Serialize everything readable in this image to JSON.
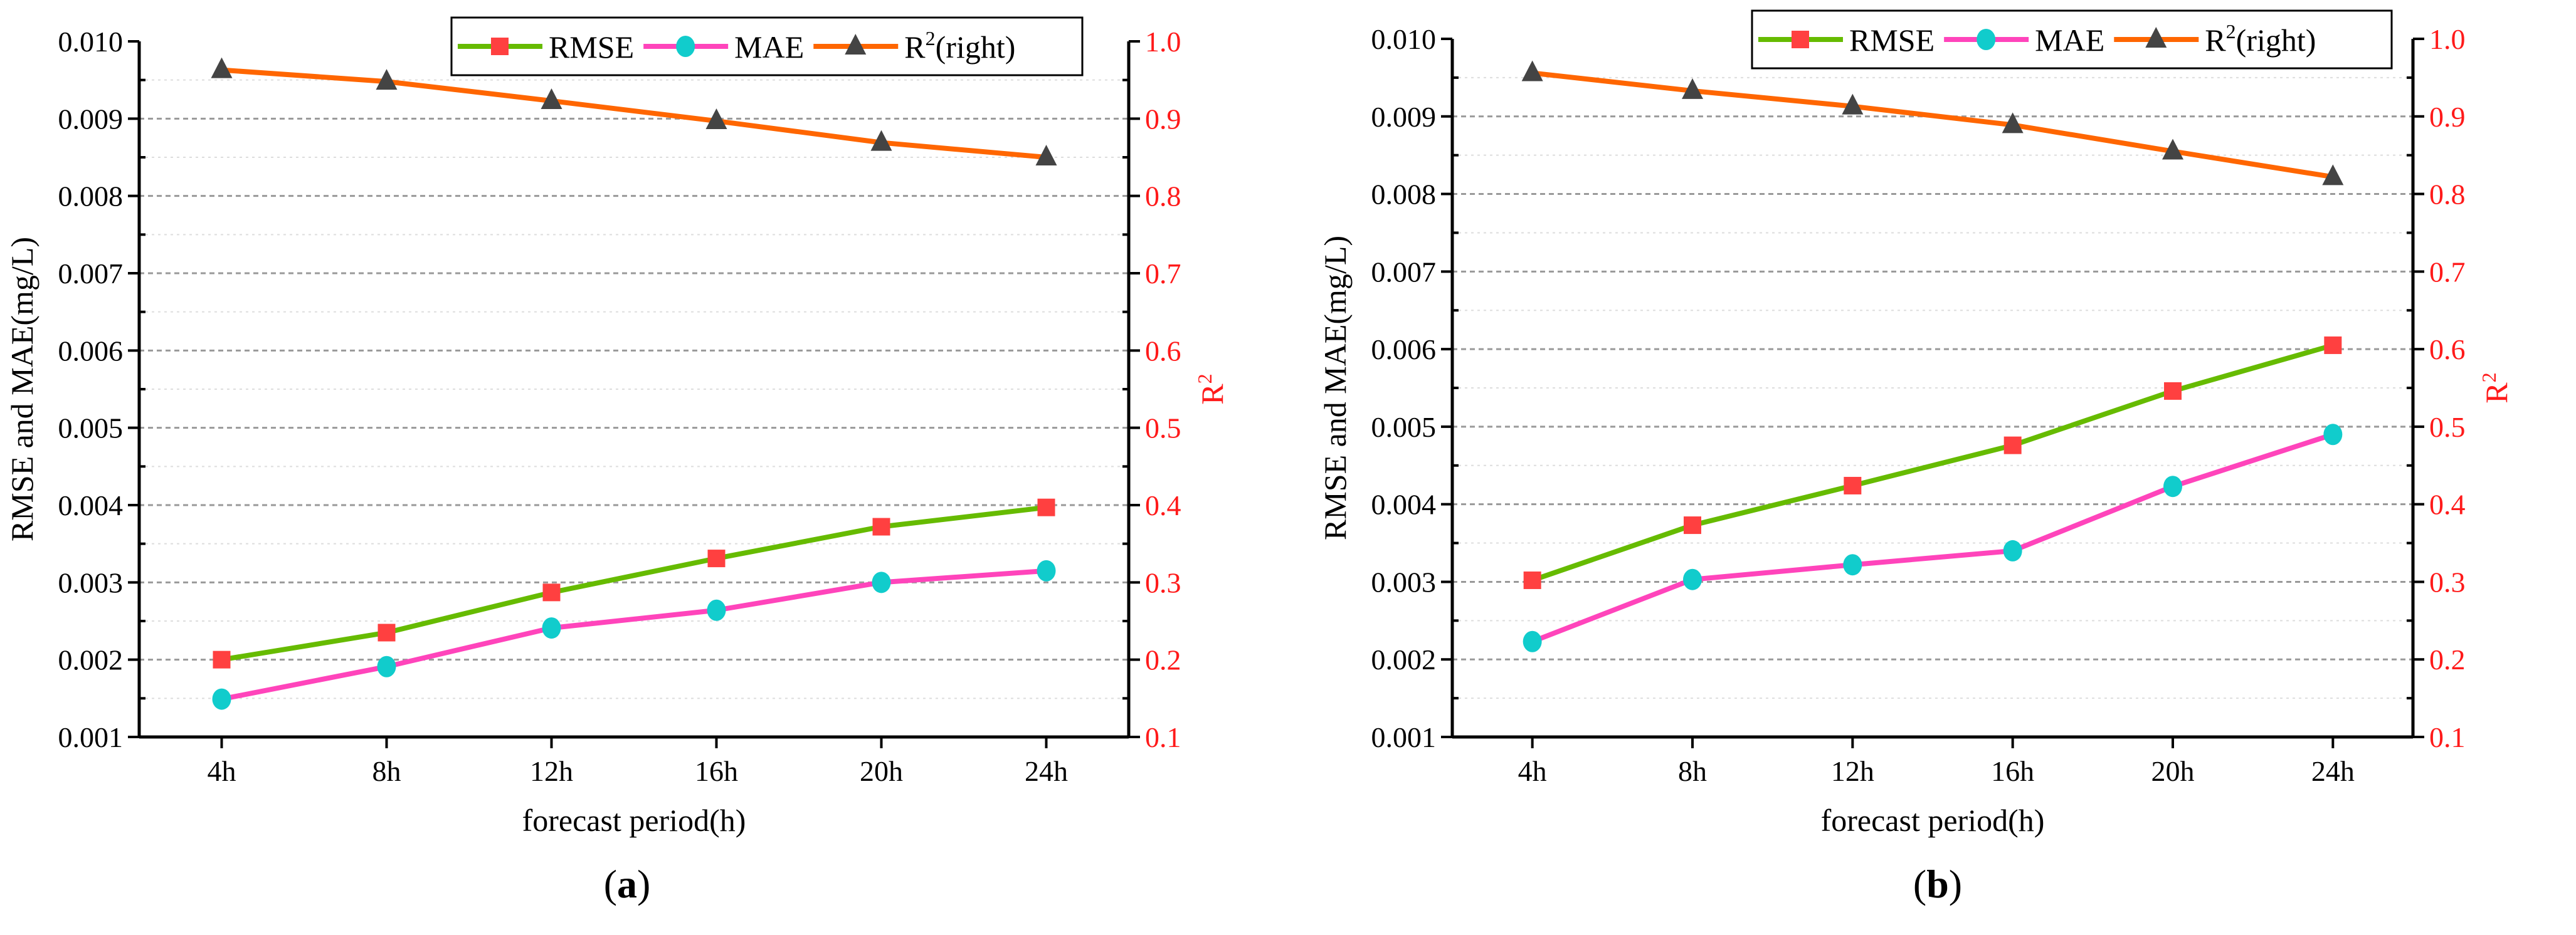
{
  "chart_data": [
    {
      "type": "line",
      "panel_label": "a",
      "categories": [
        "4h",
        "8h",
        "12h",
        "16h",
        "20h",
        "24h"
      ],
      "xlabel": "forecast period(h)",
      "ylabel": "RMSE and MAE(mg/L)",
      "ylabel_right": "R2",
      "ylim": [
        0.001,
        0.01
      ],
      "yticks": [
        "0.001",
        "0.002",
        "0.003",
        "0.004",
        "0.005",
        "0.006",
        "0.007",
        "0.008",
        "0.009",
        "0.010"
      ],
      "ylim_right": [
        0.1,
        1.0
      ],
      "yticks_right": [
        "0.1",
        "0.2",
        "0.3",
        "0.4",
        "0.5",
        "0.6",
        "0.7",
        "0.8",
        "0.9",
        "1.0"
      ],
      "grid": true,
      "legend_position": "top-right",
      "series": [
        {
          "name": "RMSE",
          "axis": "left",
          "color": "#66bb00",
          "marker": "square",
          "marker_color": "#ff4040",
          "values": [
            0.002,
            0.00235,
            0.00287,
            0.00331,
            0.00372,
            0.00397
          ]
        },
        {
          "name": "MAE",
          "axis": "left",
          "color": "#ff44bb",
          "marker": "circle",
          "marker_color": "#11cccc",
          "values": [
            0.00149,
            0.00191,
            0.00241,
            0.00264,
            0.003,
            0.00315
          ]
        },
        {
          "name": "R2(right)",
          "axis": "right",
          "color": "#ff6600",
          "marker": "triangle",
          "marker_color": "#444444",
          "values": [
            0.963,
            0.948,
            0.923,
            0.897,
            0.869,
            0.85
          ]
        }
      ]
    },
    {
      "type": "line",
      "panel_label": "b",
      "categories": [
        "4h",
        "8h",
        "12h",
        "16h",
        "20h",
        "24h"
      ],
      "xlabel": "forecast period(h)",
      "ylabel": "RMSE and MAE(mg/L)",
      "ylabel_right": "R2",
      "ylim": [
        0.001,
        0.01
      ],
      "yticks": [
        "0.001",
        "0.002",
        "0.003",
        "0.004",
        "0.005",
        "0.006",
        "0.007",
        "0.008",
        "0.009",
        "0.010"
      ],
      "ylim_right": [
        0.1,
        1.0
      ],
      "yticks_right": [
        "0.1",
        "0.2",
        "0.3",
        "0.4",
        "0.5",
        "0.6",
        "0.7",
        "0.8",
        "0.9",
        "1.0"
      ],
      "grid": true,
      "legend_position": "top-right",
      "series": [
        {
          "name": "RMSE",
          "axis": "left",
          "color": "#66bb00",
          "marker": "square",
          "marker_color": "#ff4040",
          "values": [
            0.00302,
            0.00373,
            0.00424,
            0.00476,
            0.00546,
            0.00605
          ]
        },
        {
          "name": "MAE",
          "axis": "left",
          "color": "#ff44bb",
          "marker": "circle",
          "marker_color": "#11cccc",
          "values": [
            0.00223,
            0.00303,
            0.00322,
            0.0034,
            0.00423,
            0.0049
          ]
        },
        {
          "name": "R2(right)",
          "axis": "right",
          "color": "#ff6600",
          "marker": "triangle",
          "marker_color": "#444444",
          "values": [
            0.956,
            0.933,
            0.913,
            0.889,
            0.855,
            0.822
          ]
        }
      ]
    }
  ]
}
